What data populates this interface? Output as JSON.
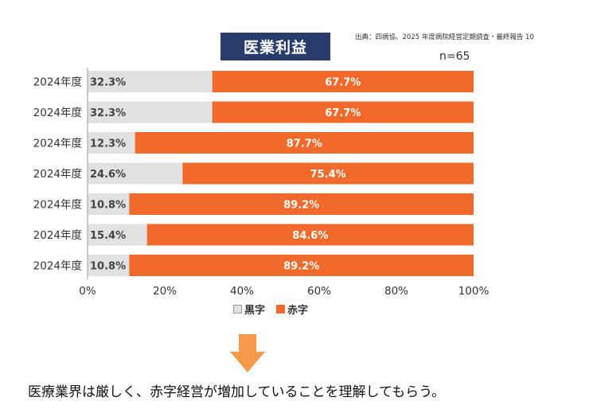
{
  "source_note": "出典：四病協、2025 年度病院経営定期調査・最終報告 10",
  "title": "医業利益",
  "n_label": "n=65",
  "colors": {
    "profit": "#e0e1e3",
    "deficit": "#f26a2b",
    "title_bg": "#283b6b",
    "arrow": "#f59a4b"
  },
  "chart_data": {
    "type": "bar",
    "orientation": "horizontal",
    "stacked": true,
    "title": "医業利益",
    "categories": [
      "2024年度",
      "2024年度",
      "2024年度",
      "2024年度",
      "2024年度",
      "2024年度",
      "2024年度"
    ],
    "series": [
      {
        "name": "黒字",
        "values": [
          32.3,
          32.3,
          12.3,
          24.6,
          10.8,
          15.4,
          10.8
        ],
        "labels": [
          "32.3%",
          "32.3%",
          "12.3%",
          "24.6%",
          "10.8%",
          "15.4%",
          "10.8%"
        ]
      },
      {
        "name": "赤字",
        "values": [
          67.7,
          67.7,
          87.7,
          75.4,
          89.2,
          84.6,
          89.2
        ],
        "labels": [
          "67.7%",
          "67.7%",
          "87.7%",
          "75.4%",
          "89.2%",
          "84.6%",
          "89.2%"
        ]
      }
    ],
    "xlim": [
      0,
      100
    ],
    "xticks": [
      "0%",
      "20%",
      "40%",
      "60%",
      "80%",
      "100%"
    ],
    "legend_position": "bottom",
    "grid": false
  },
  "legend": {
    "profit": "黒字",
    "deficit": "赤字"
  },
  "caption": "医療業界は厳しく、赤字経営が増加していることを理解してもらう。"
}
